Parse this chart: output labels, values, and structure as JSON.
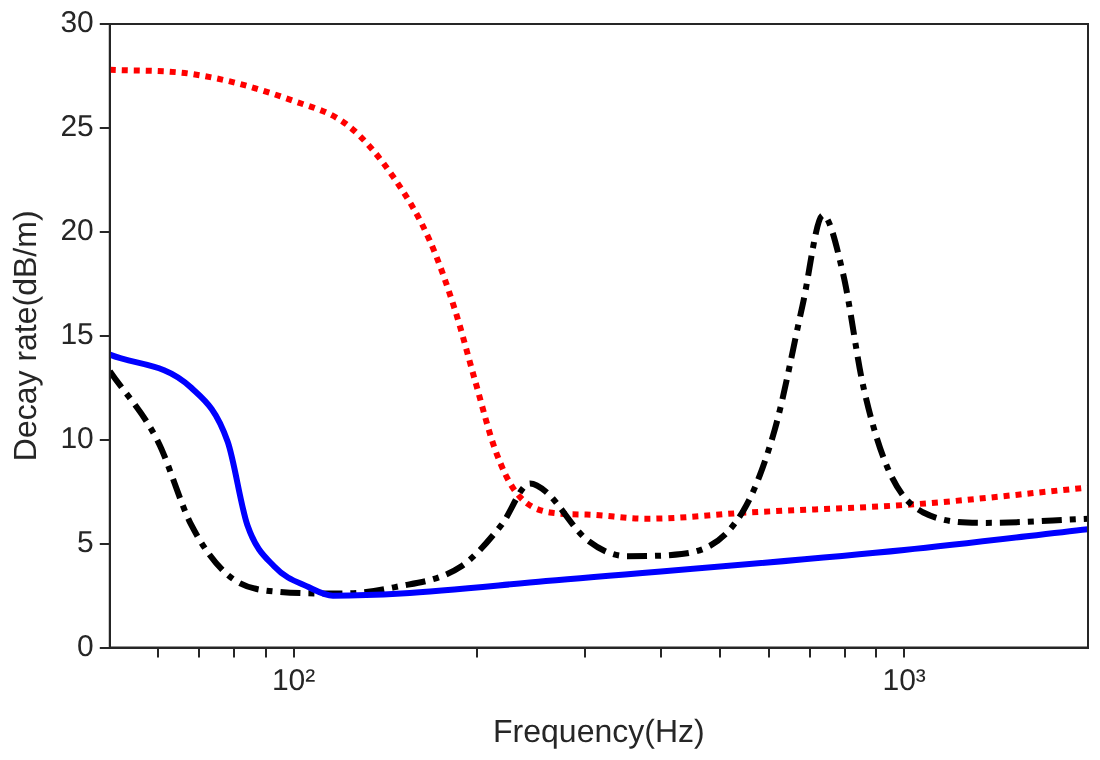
{
  "chart_data": {
    "type": "line",
    "xlabel": "Frequency(Hz)",
    "ylabel": "Decay rate(dB/m)",
    "log": "x",
    "xlim": [
      50,
      2000
    ],
    "ylim": [
      0,
      30
    ],
    "xticks": [
      {
        "value": 60,
        "label": null
      },
      {
        "value": 70,
        "label": null
      },
      {
        "value": 80,
        "label": null
      },
      {
        "value": 90,
        "label": null
      },
      {
        "value": 100,
        "label": "10²"
      },
      {
        "value": 200,
        "label": null
      },
      {
        "value": 300,
        "label": null
      },
      {
        "value": 400,
        "label": null
      },
      {
        "value": 500,
        "label": null
      },
      {
        "value": 600,
        "label": null
      },
      {
        "value": 700,
        "label": null
      },
      {
        "value": 800,
        "label": null
      },
      {
        "value": 900,
        "label": null
      },
      {
        "value": 1000,
        "label": "10³"
      }
    ],
    "yticks": [
      0,
      5,
      10,
      15,
      20,
      25,
      30
    ],
    "grid": false,
    "legend": false,
    "marker": "none",
    "series": [
      {
        "color": "#0000ff",
        "line_style": "solid",
        "x": [
          50,
          68,
          78,
          84,
          93,
          106,
          116,
          150,
          259,
          1000,
          2000
        ],
        "values": [
          14.1,
          12.5,
          9.9,
          5.9,
          3.9,
          2.9,
          2.5,
          2.6,
          3.2,
          4.7,
          5.7
        ]
      },
      {
        "color": "#000000",
        "line_style": "dashed",
        "x": [
          50,
          60,
          68,
          78,
          93,
          120,
          146,
          188,
          219,
          244,
          259,
          302,
          351,
          432,
          543,
          614,
          682,
          736,
          794,
          858,
          944,
          1075,
          1355,
          2000
        ],
        "values": [
          13.3,
          9.9,
          5.9,
          3.5,
          2.7,
          2.6,
          2.9,
          3.9,
          5.9,
          7.9,
          7.5,
          5.2,
          4.4,
          4.5,
          6.5,
          10.5,
          16.5,
          20.8,
          18,
          12.5,
          8.5,
          6.5,
          6.0,
          6.2
        ]
      },
      {
        "color": "#ff0000",
        "line_style": "dotted",
        "x": [
          50,
          68,
          100,
          123,
          146,
          167,
          184,
          198,
          214,
          231,
          263,
          302,
          379,
          556,
          1045,
          2000
        ],
        "values": [
          27.8,
          27.6,
          26.3,
          25.1,
          22.6,
          19.6,
          16.2,
          12.9,
          9.5,
          7.5,
          6.5,
          6.4,
          6.2,
          6.5,
          6.9,
          7.7
        ]
      }
    ]
  }
}
